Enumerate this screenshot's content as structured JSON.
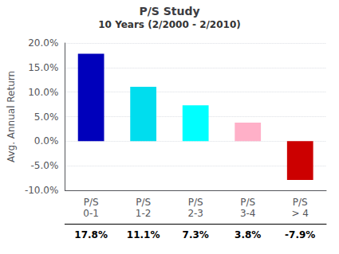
{
  "chart_data": {
    "type": "bar",
    "title": "P/S Study",
    "subtitle": "10 Years (2/2000 - 2/2010)",
    "categories": [
      "P/S\n0-1",
      "P/S\n1-2",
      "P/S\n2-3",
      "P/S\n3-4",
      "P/S\n> 4"
    ],
    "values": [
      17.8,
      11.1,
      7.3,
      3.8,
      -7.9
    ],
    "value_labels": [
      "17.8%",
      "11.1%",
      "7.3%",
      "3.8%",
      "-7.9%"
    ],
    "colors": [
      "#0000bb",
      "#00ddee",
      "#00ffff",
      "#ffb0c8",
      "#cc0000"
    ],
    "ylabel": "Avg. Annual Return",
    "ylim": [
      -10.0,
      20.0
    ],
    "yticks": [
      {
        "value": -10.0,
        "label": "-10.0%"
      },
      {
        "value": -5.0,
        "label": "-5.0%"
      },
      {
        "value": 0.0,
        "label": "0.0%"
      },
      {
        "value": 5.0,
        "label": "5.0%"
      },
      {
        "value": 10.0,
        "label": "10.0%"
      },
      {
        "value": 15.0,
        "label": "15.0%"
      },
      {
        "value": 20.0,
        "label": "20.0%"
      }
    ],
    "grid": true
  }
}
